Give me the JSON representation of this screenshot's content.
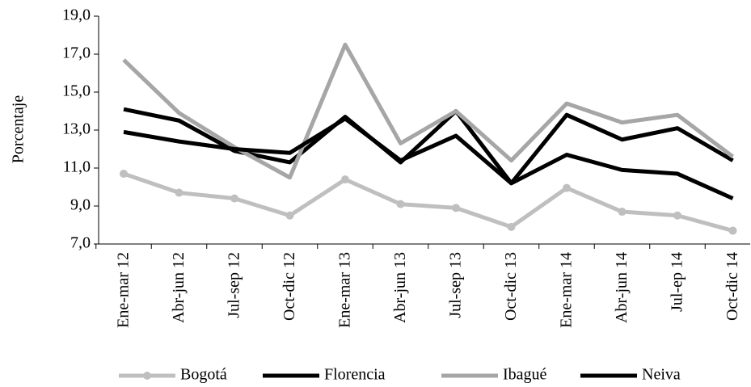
{
  "chart_data": {
    "type": "line",
    "y_label": "Porcentaje",
    "categories": [
      "Ene-mar 12",
      "Abr-jun 12",
      "Jul-sep 12",
      "Oct-dic 12",
      "Ene-mar 13",
      "Abr-jun 13",
      "Jul-sep 13",
      "Oct-dic 13",
      "Ene-mar 14",
      "Abr-jun 14",
      "Jul-ep 14",
      "Oct-dic 14"
    ],
    "series": [
      {
        "name": "Bogotá",
        "color": "#bfbfbf",
        "marker": true,
        "values": [
          10.7,
          9.7,
          9.4,
          8.5,
          10.4,
          9.1,
          8.9,
          7.9,
          9.95,
          8.7,
          8.5,
          7.7
        ]
      },
      {
        "name": "Florencia",
        "color": "#000000",
        "marker": false,
        "values": [
          14.1,
          13.5,
          11.9,
          11.3,
          13.7,
          11.3,
          14.0,
          10.2,
          13.8,
          12.5,
          13.1,
          11.4
        ]
      },
      {
        "name": "Ibagué",
        "color": "#a6a6a6",
        "marker": false,
        "values": [
          16.7,
          13.9,
          12.1,
          10.5,
          17.5,
          12.3,
          14.0,
          11.4,
          14.4,
          13.4,
          13.8,
          11.6
        ]
      },
      {
        "name": "Neiva",
        "color": "#000000",
        "marker": false,
        "values": [
          12.9,
          12.4,
          12.0,
          11.8,
          13.6,
          11.4,
          12.7,
          10.2,
          11.7,
          10.9,
          10.7,
          9.4
        ]
      }
    ],
    "ylim": [
      7,
      19
    ],
    "yticks": [
      {
        "value": 7,
        "label": "7,0"
      },
      {
        "value": 9,
        "label": "9,0"
      },
      {
        "value": 11,
        "label": "11,0"
      },
      {
        "value": 13,
        "label": "13,0"
      },
      {
        "value": 15,
        "label": "15,0"
      },
      {
        "value": 17,
        "label": "17,0"
      },
      {
        "value": 19,
        "label": "19,0"
      }
    ]
  }
}
